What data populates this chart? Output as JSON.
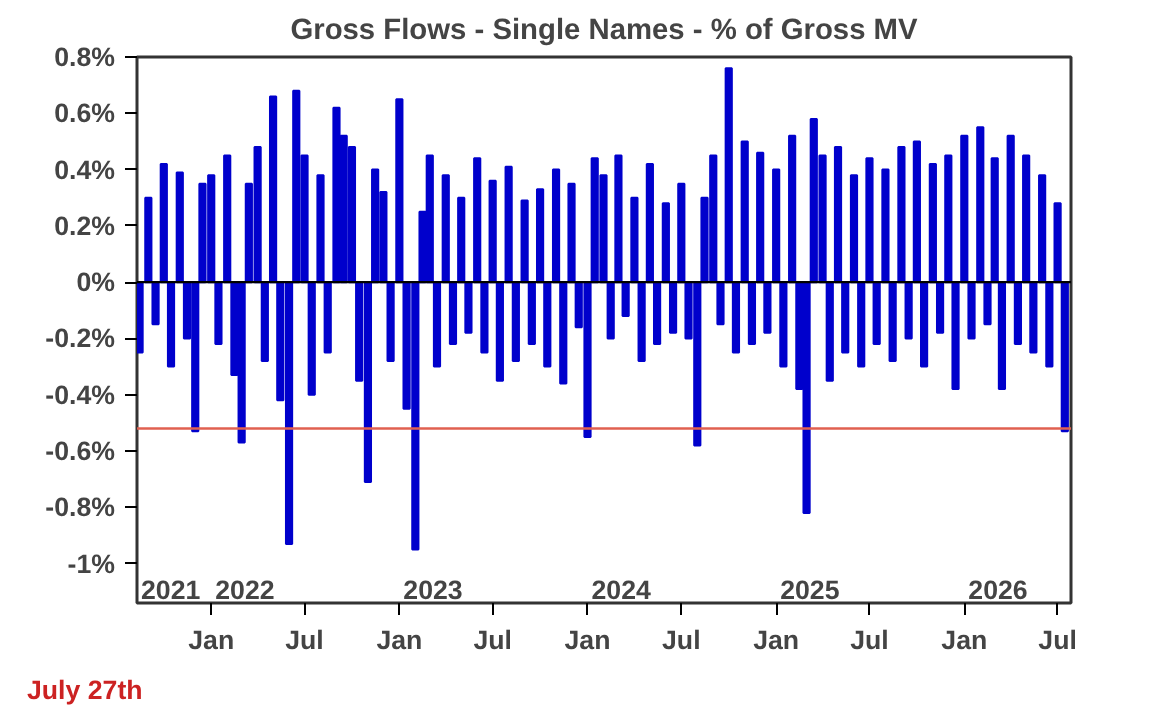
{
  "chart_data": {
    "type": "bar",
    "title": "Gross Flows - Single Names - % of Gross MV",
    "x": [
      "2021-08-15",
      "2021-09-01",
      "2021-09-15",
      "2021-10-01",
      "2021-10-15",
      "2021-11-01",
      "2021-11-15",
      "2021-12-01",
      "2021-12-15",
      "2022-01-01",
      "2022-01-15",
      "2022-02-01",
      "2022-02-15",
      "2022-03-01",
      "2022-03-15",
      "2022-04-01",
      "2022-04-15",
      "2022-05-01",
      "2022-05-15",
      "2022-06-01",
      "2022-06-15",
      "2022-07-01",
      "2022-07-15",
      "2022-08-01",
      "2022-08-15",
      "2022-09-01",
      "2022-09-15",
      "2022-10-01",
      "2022-10-15",
      "2022-11-01",
      "2022-11-15",
      "2022-12-01",
      "2022-12-15",
      "2023-01-01",
      "2023-01-15",
      "2023-02-01",
      "2023-02-15",
      "2023-03-01",
      "2023-03-15",
      "2023-04-01",
      "2023-04-15",
      "2023-05-01",
      "2023-05-15",
      "2023-06-01",
      "2023-06-15",
      "2023-07-01",
      "2023-07-15",
      "2023-08-01",
      "2023-08-15",
      "2023-09-01",
      "2023-09-15",
      "2023-10-01",
      "2023-10-15",
      "2023-11-01",
      "2023-11-15",
      "2023-12-01",
      "2023-12-15",
      "2024-01-01",
      "2024-01-15",
      "2024-02-01",
      "2024-02-15",
      "2024-03-01",
      "2024-03-15",
      "2024-04-01",
      "2024-04-15",
      "2024-05-01",
      "2024-05-15",
      "2024-06-01",
      "2024-06-15",
      "2024-07-01",
      "2024-07-15",
      "2024-08-01",
      "2024-08-15",
      "2024-09-01",
      "2024-09-15",
      "2024-10-01",
      "2024-10-15",
      "2024-11-01",
      "2024-11-15",
      "2024-12-01",
      "2024-12-15",
      "2025-01-01",
      "2025-01-15",
      "2025-02-01",
      "2025-02-15",
      "2025-03-01",
      "2025-03-15",
      "2025-04-01",
      "2025-04-15",
      "2025-05-01",
      "2025-05-15",
      "2025-06-01",
      "2025-06-15",
      "2025-07-01",
      "2025-07-15",
      "2025-08-01",
      "2025-08-15",
      "2025-09-01",
      "2025-09-15",
      "2025-10-01",
      "2025-10-15",
      "2025-11-01",
      "2025-11-15",
      "2025-12-01",
      "2025-12-15",
      "2026-01-01",
      "2026-01-15",
      "2026-02-01",
      "2026-02-15",
      "2026-03-01",
      "2026-03-15",
      "2026-04-01",
      "2026-04-15",
      "2026-05-01",
      "2026-05-15",
      "2026-06-01",
      "2026-06-15",
      "2026-07-01",
      "2026-07-15"
    ],
    "values": [
      -0.25,
      0.3,
      -0.15,
      0.42,
      -0.3,
      0.39,
      -0.2,
      -0.53,
      0.35,
      0.38,
      -0.22,
      0.45,
      -0.33,
      -0.57,
      0.35,
      0.48,
      -0.28,
      0.66,
      -0.42,
      -0.93,
      0.68,
      0.45,
      -0.4,
      0.38,
      -0.25,
      0.62,
      0.52,
      0.48,
      -0.35,
      -0.71,
      0.4,
      0.32,
      -0.28,
      0.65,
      -0.45,
      -0.95,
      0.25,
      0.45,
      -0.3,
      0.38,
      -0.22,
      0.3,
      -0.18,
      0.44,
      -0.25,
      0.36,
      -0.35,
      0.41,
      -0.28,
      0.29,
      -0.22,
      0.33,
      -0.3,
      0.4,
      -0.36,
      0.35,
      -0.16,
      -0.55,
      0.44,
      0.38,
      -0.2,
      0.45,
      -0.12,
      0.3,
      -0.28,
      0.42,
      -0.22,
      0.28,
      -0.18,
      0.35,
      -0.2,
      -0.58,
      0.3,
      0.45,
      -0.15,
      0.76,
      -0.25,
      0.5,
      -0.22,
      0.46,
      -0.18,
      0.4,
      -0.3,
      0.52,
      -0.38,
      -0.82,
      0.58,
      0.45,
      -0.35,
      0.48,
      -0.25,
      0.38,
      -0.3,
      0.44,
      -0.22,
      0.4,
      -0.28,
      0.48,
      -0.2,
      0.5,
      -0.3,
      0.42,
      -0.18,
      0.45,
      -0.38,
      0.52,
      -0.2,
      0.55,
      -0.15,
      0.44,
      -0.38,
      0.52,
      -0.22,
      0.45,
      -0.25,
      0.38,
      -0.3,
      0.28,
      -0.53
    ],
    "color": "#0000cc",
    "xlim": [
      "2021-08-10",
      "2026-07-27"
    ],
    "xticks": [
      {
        "value": "2022-01-01",
        "label": "Jan"
      },
      {
        "value": "2022-07-01",
        "label": "Jul"
      },
      {
        "value": "2023-01-01",
        "label": "Jan"
      },
      {
        "value": "2023-07-01",
        "label": "Jul"
      },
      {
        "value": "2024-01-01",
        "label": "Jan"
      },
      {
        "value": "2024-07-01",
        "label": "Jul"
      },
      {
        "value": "2025-01-01",
        "label": "Jan"
      },
      {
        "value": "2025-07-01",
        "label": "Jul"
      },
      {
        "value": "2026-01-01",
        "label": "Jan"
      },
      {
        "value": "2026-07-01",
        "label": "Jul"
      }
    ],
    "ylim": [
      -1.14,
      0.8
    ],
    "yticks": [
      {
        "value": 0.8,
        "label": "0.8%"
      },
      {
        "value": 0.6,
        "label": "0.6%"
      },
      {
        "value": 0.4,
        "label": "0.4%"
      },
      {
        "value": 0.2,
        "label": "0.2%"
      },
      {
        "value": 0,
        "label": "0%"
      },
      {
        "value": -0.2,
        "label": "-0.2%"
      },
      {
        "value": -0.4,
        "label": "-0.4%"
      },
      {
        "value": -0.6,
        "label": "-0.6%"
      },
      {
        "value": -0.8,
        "label": "-0.8%"
      },
      {
        "value": -1,
        "label": "-1%"
      }
    ],
    "ref_lines": [
      {
        "axis": "y",
        "value": 0,
        "color": "#000000"
      },
      {
        "axis": "y",
        "value": -0.52,
        "color": "#e06050"
      }
    ],
    "annotations": [
      "2021",
      "2022",
      "2023",
      "2024",
      "2025",
      "2026",
      "July 27th"
    ],
    "grid": false
  }
}
